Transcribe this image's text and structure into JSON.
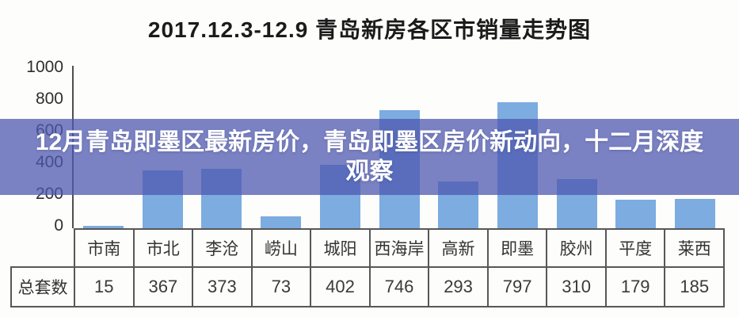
{
  "header": {
    "title": "2017.12.3-12.9  青岛新房各区市销量走势图"
  },
  "overlay": {
    "lines": [
      "12月青岛即墨区最新房价，青岛即墨区房价新动向，十二月深度",
      "观察"
    ],
    "text_color": "#ffffff",
    "background": "rgba(78,88,176,0.75)"
  },
  "chart_data": {
    "type": "bar",
    "title": "2017.12.3-12.9 青岛新房各区市销量走势图",
    "categories": [
      "市南",
      "市北",
      "李沧",
      "崂山",
      "城阳",
      "西海岸",
      "高新",
      "即墨",
      "胶州",
      "平度",
      "莱西"
    ],
    "values": [
      15,
      367,
      373,
      73,
      402,
      746,
      293,
      797,
      310,
      179,
      185
    ],
    "series_label": "总套数",
    "xlabel": "",
    "ylabel": "",
    "ylim": [
      0,
      1000
    ],
    "yticks": [
      1000,
      800,
      600,
      400,
      200,
      0
    ],
    "grid": false,
    "legend": "none",
    "bar_color": "#7CACE0"
  },
  "colors": {
    "axis_and_border": "#575757",
    "title_text": "#1b1b1b",
    "tick_text": "#2e2e2e"
  }
}
